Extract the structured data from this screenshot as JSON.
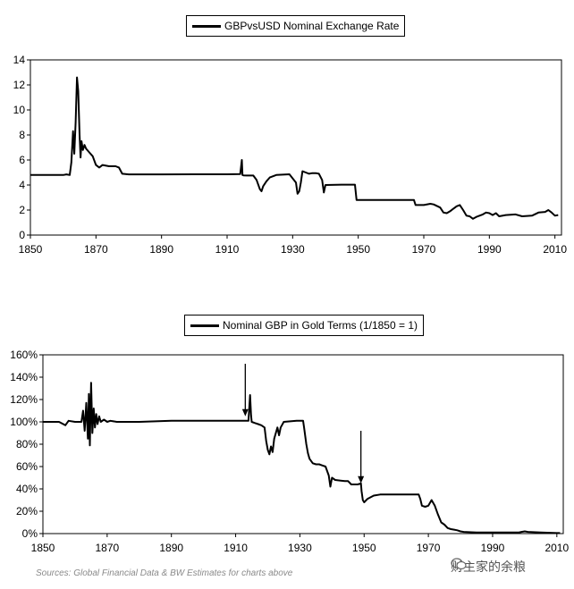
{
  "chart_data": [
    {
      "type": "line",
      "title": "",
      "legend": "GBPvsUSD Nominal Exchange Rate",
      "legend_placement": "top-center",
      "xlabel": "",
      "ylabel": "",
      "xlim": [
        1850,
        2012
      ],
      "ylim": [
        0,
        14
      ],
      "xticks": [
        1850,
        1870,
        1890,
        1910,
        1930,
        1950,
        1970,
        1990,
        2010
      ],
      "yticks": [
        0,
        2,
        4,
        6,
        8,
        10,
        12,
        14
      ],
      "ytick_labels": [
        "0",
        "2",
        "4",
        "6",
        "8",
        "10",
        "12",
        "14"
      ],
      "grid": false,
      "series": [
        {
          "name": "GBPvsUSD Nominal Exchange Rate",
          "x": [
            1850,
            1855,
            1860,
            1861,
            1862,
            1862.5,
            1863,
            1863.4,
            1863.8,
            1864.2,
            1864.6,
            1865,
            1865.3,
            1865.6,
            1866,
            1866.5,
            1867,
            1868,
            1869,
            1870,
            1871,
            1872,
            1874,
            1876,
            1877,
            1878,
            1880,
            1890,
            1900,
            1910,
            1914,
            1914.5,
            1914.7,
            1915,
            1916,
            1917,
            1918,
            1919,
            1920,
            1920.5,
            1921,
            1922,
            1923,
            1925,
            1929,
            1931,
            1931.5,
            1932,
            1932.5,
            1933,
            1934,
            1935,
            1936,
            1937,
            1938,
            1939,
            1939.5,
            1940,
            1945,
            1949,
            1949.5,
            1955,
            1967,
            1967.5,
            1970,
            1972,
            1973,
            1975,
            1976,
            1977,
            1978,
            1979,
            1980,
            1981,
            1982,
            1983,
            1984,
            1985,
            1986,
            1988,
            1989,
            1990,
            1991,
            1992,
            1993,
            1995,
            1998,
            2000,
            2003,
            2005,
            2007,
            2008,
            2009,
            2010,
            2011
          ],
          "y": [
            4.8,
            4.8,
            4.8,
            4.85,
            4.8,
            5.8,
            8.3,
            6.5,
            9.0,
            12.6,
            11.5,
            8.0,
            6.2,
            7.5,
            6.8,
            7.2,
            6.9,
            6.6,
            6.3,
            5.6,
            5.4,
            5.6,
            5.5,
            5.5,
            5.4,
            4.9,
            4.85,
            4.85,
            4.86,
            4.86,
            4.87,
            6.0,
            4.8,
            4.77,
            4.76,
            4.76,
            4.76,
            4.4,
            3.66,
            3.5,
            3.9,
            4.3,
            4.6,
            4.8,
            4.86,
            4.2,
            3.3,
            3.5,
            4.2,
            5.1,
            5.0,
            4.9,
            4.95,
            4.95,
            4.9,
            4.4,
            3.4,
            4.0,
            4.03,
            4.03,
            2.8,
            2.8,
            2.8,
            2.4,
            2.4,
            2.5,
            2.45,
            2.2,
            1.8,
            1.75,
            1.9,
            2.1,
            2.3,
            2.4,
            2.0,
            1.55,
            1.5,
            1.3,
            1.45,
            1.65,
            1.8,
            1.75,
            1.6,
            1.75,
            1.5,
            1.6,
            1.65,
            1.5,
            1.55,
            1.8,
            1.85,
            2.0,
            1.8,
            1.55,
            1.6
          ]
        }
      ]
    },
    {
      "type": "line",
      "title": "",
      "legend": "Nominal GBP in Gold Terms (1/1850 = 1)",
      "legend_placement": "top-center",
      "xlabel": "",
      "ylabel": "",
      "xlim": [
        1850,
        2012
      ],
      "ylim": [
        0,
        1.6
      ],
      "xticks": [
        1850,
        1870,
        1890,
        1910,
        1930,
        1950,
        1970,
        1990,
        2010
      ],
      "yticks": [
        0,
        0.2,
        0.4,
        0.6,
        0.8,
        1.0,
        1.2,
        1.4,
        1.6
      ],
      "ytick_labels": [
        "0%",
        "20%",
        "40%",
        "60%",
        "80%",
        "100%",
        "120%",
        "140%",
        "160%"
      ],
      "grid": false,
      "annotations": [
        {
          "type": "arrow",
          "x": 1913,
          "y_from": 1.52,
          "y_to": 1.05
        },
        {
          "type": "arrow",
          "x": 1949,
          "y_from": 0.92,
          "y_to": 0.45
        }
      ],
      "series": [
        {
          "name": "Nominal GBP in Gold Terms (1/1850 = 1)",
          "x": [
            1850,
            1855,
            1857,
            1858,
            1860,
            1862,
            1862.5,
            1863,
            1863.5,
            1864,
            1864.3,
            1864.6,
            1865,
            1865.4,
            1865.8,
            1866.2,
            1866.6,
            1867,
            1867.5,
            1868,
            1869,
            1870,
            1871,
            1873,
            1875,
            1877,
            1880,
            1890,
            1900,
            1910,
            1913,
            1914,
            1914.5,
            1914.8,
            1915,
            1916,
            1917,
            1918,
            1919,
            1919.5,
            1920,
            1920.5,
            1921,
            1921.5,
            1922,
            1922.5,
            1923,
            1923.5,
            1924,
            1925,
            1929,
            1931,
            1931.3,
            1932,
            1932.5,
            1933,
            1934,
            1935,
            1936,
            1937,
            1938,
            1939,
            1939.5,
            1940,
            1941,
            1944,
            1945,
            1946,
            1948,
            1949,
            1949.2,
            1949.6,
            1950,
            1951,
            1953,
            1955,
            1960,
            1965,
            1967,
            1967.5,
            1968,
            1969,
            1970,
            1971,
            1972,
            1973,
            1974,
            1975,
            1976,
            1977,
            1978,
            1979,
            1980,
            1981,
            1985,
            1990,
            1995,
            1998,
            1999,
            2000,
            2001,
            2005,
            2008,
            2010,
            2011
          ],
          "y": [
            1.0,
            1.0,
            0.97,
            1.01,
            1.0,
            1.0,
            1.1,
            0.92,
            1.17,
            0.85,
            1.25,
            0.79,
            1.35,
            0.9,
            1.12,
            0.95,
            1.07,
            0.98,
            1.05,
            1.0,
            1.02,
            1.0,
            1.01,
            1.0,
            1.0,
            1.0,
            1.0,
            1.01,
            1.01,
            1.01,
            1.01,
            1.01,
            1.24,
            1.06,
            1.0,
            0.99,
            0.98,
            0.97,
            0.95,
            0.83,
            0.75,
            0.71,
            0.78,
            0.73,
            0.85,
            0.9,
            0.95,
            0.88,
            0.95,
            1.0,
            1.01,
            1.01,
            0.95,
            0.8,
            0.72,
            0.67,
            0.63,
            0.62,
            0.62,
            0.61,
            0.6,
            0.52,
            0.42,
            0.5,
            0.48,
            0.47,
            0.47,
            0.44,
            0.44,
            0.45,
            0.38,
            0.3,
            0.28,
            0.31,
            0.34,
            0.35,
            0.35,
            0.35,
            0.35,
            0.31,
            0.25,
            0.24,
            0.25,
            0.3,
            0.25,
            0.17,
            0.1,
            0.08,
            0.05,
            0.04,
            0.035,
            0.03,
            0.02,
            0.015,
            0.01,
            0.01,
            0.01,
            0.01,
            0.015,
            0.02,
            0.015,
            0.01,
            0.007,
            0.005,
            0.005
          ]
        }
      ]
    }
  ],
  "source_note": "Sources: Global Financial Data & BW Estimates for charts above",
  "watermark": "财主家的余粮"
}
